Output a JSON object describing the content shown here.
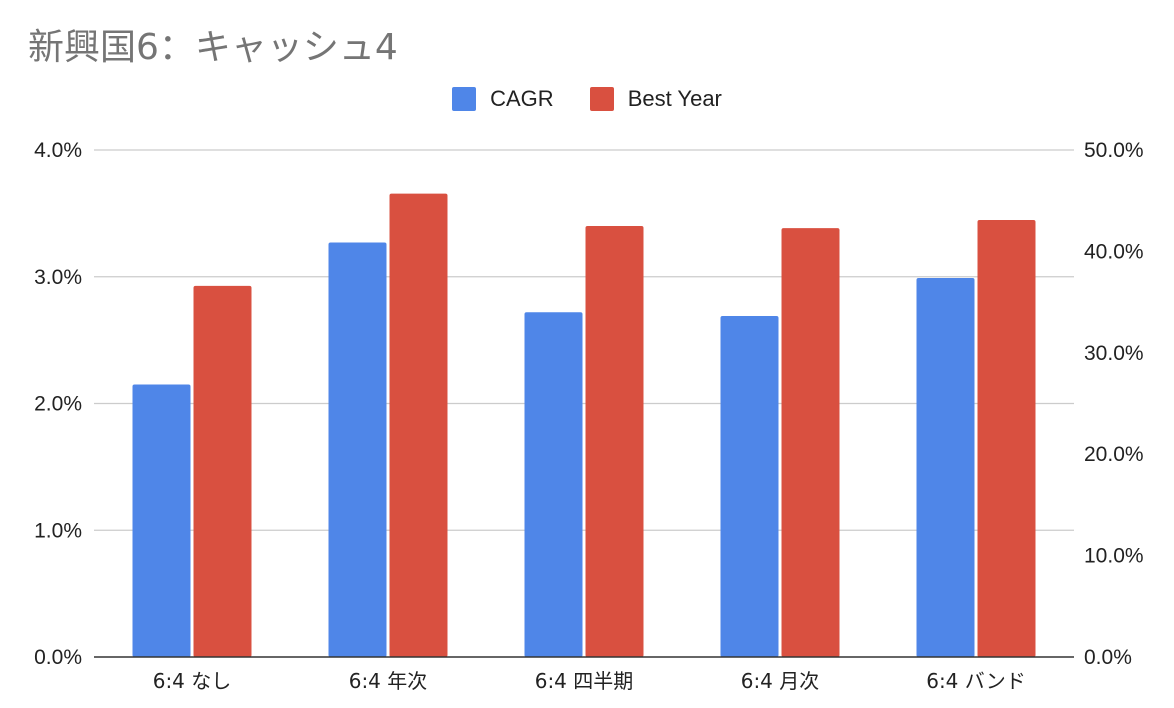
{
  "chart_data": {
    "type": "bar",
    "title": "新興国6：キャッシュ4",
    "categories": [
      "6:4 なし",
      "6:4 年次",
      "6:4 四半期",
      "6:4 月次",
      "6:4 バンド"
    ],
    "series": [
      {
        "name": "CAGR",
        "axis": "left",
        "color": "#4f86e8",
        "values": [
          2.15,
          3.27,
          2.72,
          2.69,
          2.99
        ]
      },
      {
        "name": "Best Year",
        "axis": "right",
        "color": "#d95040",
        "values": [
          36.6,
          45.7,
          42.5,
          42.3,
          43.1
        ]
      }
    ],
    "y_left": {
      "min": 0,
      "max": 4,
      "ticks": [
        "0.0%",
        "1.0%",
        "2.0%",
        "3.0%",
        "4.0%"
      ]
    },
    "y_right": {
      "min": 0,
      "max": 50,
      "ticks": [
        "0.0%",
        "10.0%",
        "20.0%",
        "30.0%",
        "40.0%",
        "50.0%"
      ]
    },
    "grid": true,
    "legend_position": "top-center"
  }
}
